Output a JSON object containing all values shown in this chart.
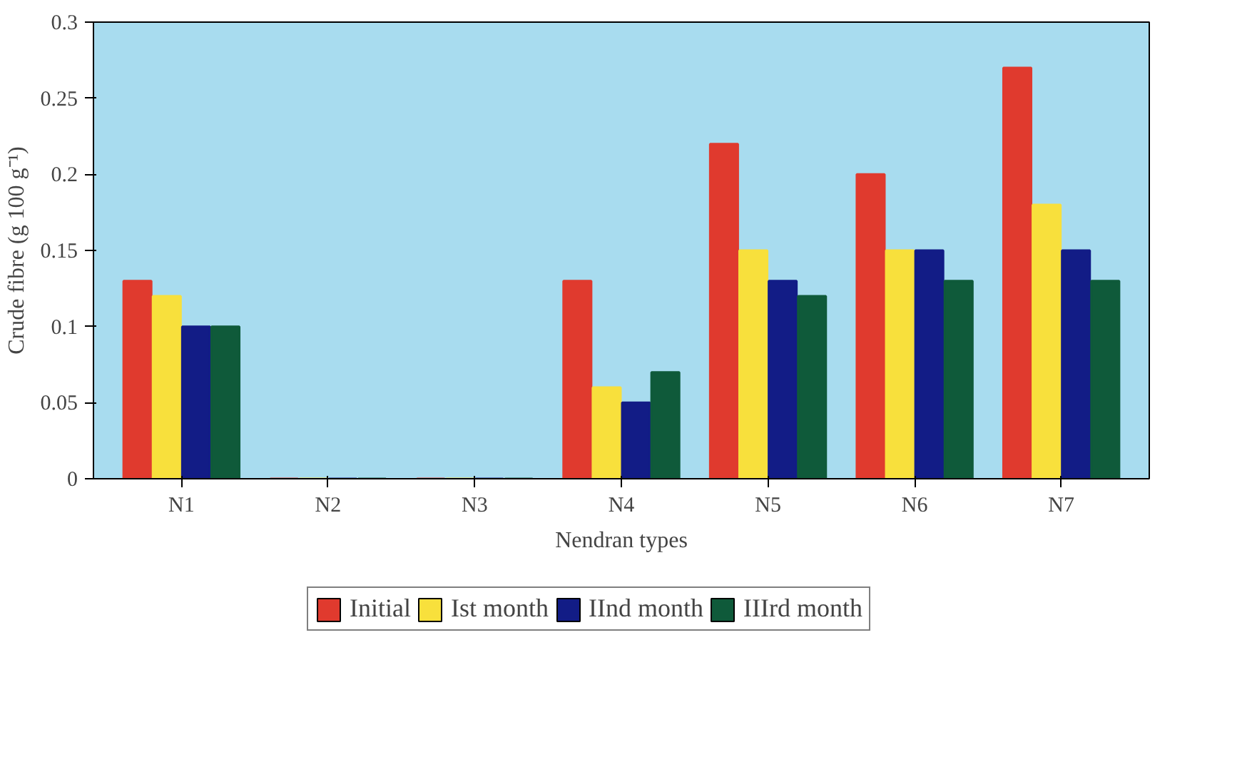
{
  "chart_data": {
    "type": "bar",
    "xlabel": "Nendran types",
    "ylabel": "Crude fibre (g 100 g⁻¹)",
    "categories": [
      "N1",
      "N2",
      "N3",
      "N4",
      "N5",
      "N6",
      "N7"
    ],
    "series": [
      {
        "name": "Initial",
        "color": "#e03a2e",
        "values": [
          0.13,
          0,
          0,
          0.13,
          0.22,
          0.2,
          0.27
        ]
      },
      {
        "name": "Ist month",
        "color": "#f8e03c",
        "values": [
          0.12,
          0,
          0,
          0.06,
          0.15,
          0.15,
          0.18
        ]
      },
      {
        "name": "IInd month",
        "color": "#121c86",
        "values": [
          0.1,
          0,
          0,
          0.05,
          0.13,
          0.15,
          0.15
        ]
      },
      {
        "name": "IIIrd month",
        "color": "#0f5a3a",
        "values": [
          0.1,
          0,
          0,
          0.07,
          0.12,
          0.13,
          0.13
        ]
      }
    ],
    "ylim": [
      0,
      0.3
    ],
    "yticks": [
      0,
      0.05,
      0.1,
      0.15,
      0.2,
      0.25,
      0.3
    ],
    "grid": false,
    "legend": "bottom"
  }
}
